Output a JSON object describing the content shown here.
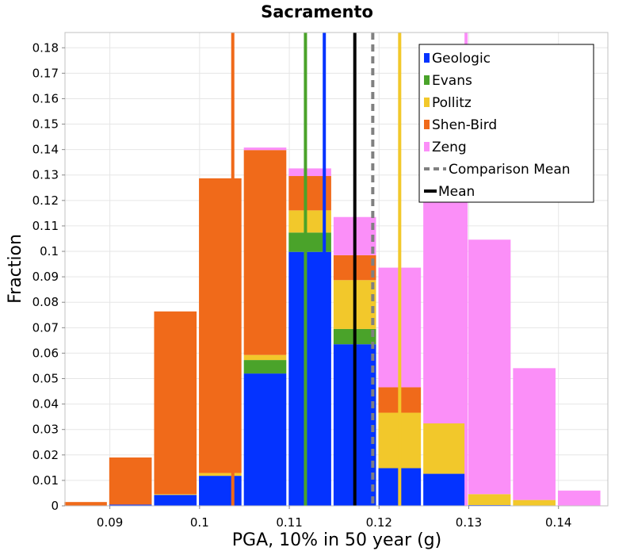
{
  "chart_data": {
    "type": "bar",
    "title": "Sacramento",
    "xlabel": "PGA, 10% in 50 year (g)",
    "ylabel": "Fraction",
    "xlim": [
      0.085,
      0.1455
    ],
    "ylim": [
      0,
      0.186
    ],
    "grid": true,
    "legend_position": "top-right",
    "x_ticks": [
      "0.09",
      "0.1",
      "0.11",
      "0.12",
      "0.13",
      "0.14"
    ],
    "y_ticks": [
      "0",
      "0.01",
      "0.02",
      "0.03",
      "0.04",
      "0.05",
      "0.06",
      "0.07",
      "0.08",
      "0.09",
      "0.1",
      "0.11",
      "0.12",
      "0.13",
      "0.14",
      "0.15",
      "0.16",
      "0.17",
      "0.18"
    ],
    "bin_centers": [
      0.0873,
      0.0923,
      0.0973,
      0.1023,
      0.1073,
      0.1123,
      0.1173,
      0.1223,
      0.1273,
      0.1323,
      0.1373,
      0.1423
    ],
    "series": [
      {
        "name": "Geologic",
        "color": "#0433ff",
        "values": [
          0,
          0.0005,
          0.0043,
          0.0118,
          0.052,
          0.0998,
          0.0635,
          0.0148,
          0.0126,
          0.0003,
          0,
          0
        ]
      },
      {
        "name": "Evans",
        "color": "#4aa32a",
        "values": [
          0,
          0,
          0,
          0,
          0.0053,
          0.0076,
          0.006,
          0,
          0,
          0,
          0,
          0
        ]
      },
      {
        "name": "Pollitz",
        "color": "#f2c82b",
        "values": [
          0,
          0,
          0.0003,
          0.0011,
          0.002,
          0.0087,
          0.0192,
          0.0218,
          0.0198,
          0.0043,
          0.0023,
          0
        ]
      },
      {
        "name": "Shen-Bird",
        "color": "#f06a1a",
        "values": [
          0.0015,
          0.0185,
          0.0718,
          0.1158,
          0.0805,
          0.0135,
          0.0098,
          0.01,
          0,
          0,
          0,
          0
        ]
      },
      {
        "name": "Zeng",
        "color": "#fb8ff8",
        "values": [
          0,
          0,
          0,
          0,
          0.001,
          0.003,
          0.015,
          0.047,
          0.098,
          0.1,
          0.0518,
          0.006
        ]
      }
    ],
    "mean_lines": [
      {
        "name": "Geologic",
        "color": "#0433ff",
        "x": 0.1139
      },
      {
        "name": "Evans",
        "color": "#4aa32a",
        "x": 0.1118
      },
      {
        "name": "Pollitz",
        "color": "#f2c82b",
        "x": 0.1223
      },
      {
        "name": "Shen-Bird",
        "color": "#f06a1a",
        "x": 0.1037
      },
      {
        "name": "Zeng",
        "color": "#fb8ff8",
        "x": 0.1297
      }
    ],
    "comparison_mean": {
      "name": "Comparison Mean",
      "color": "#808080",
      "x": 0.1193,
      "style": "dashed"
    },
    "mean": {
      "name": "Mean",
      "color": "#000000",
      "x": 0.1173,
      "style": "solid"
    },
    "legend": [
      {
        "label": "Geologic",
        "color": "#0433ff",
        "kind": "box"
      },
      {
        "label": "Evans",
        "color": "#4aa32a",
        "kind": "box"
      },
      {
        "label": "Pollitz",
        "color": "#f2c82b",
        "kind": "box"
      },
      {
        "label": "Shen-Bird",
        "color": "#f06a1a",
        "kind": "box"
      },
      {
        "label": "Zeng",
        "color": "#fb8ff8",
        "kind": "box"
      },
      {
        "label": "Comparison Mean",
        "color": "#808080",
        "kind": "dashed"
      },
      {
        "label": "Mean",
        "color": "#000000",
        "kind": "line"
      }
    ]
  }
}
